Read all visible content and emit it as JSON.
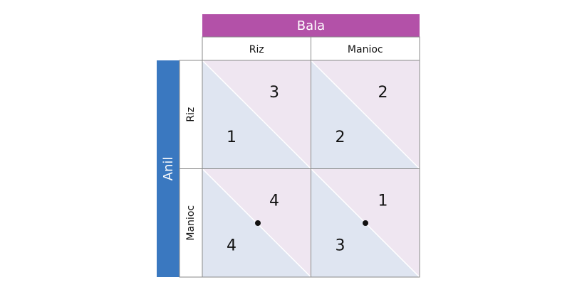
{
  "column_player": "Bala",
  "row_player": "Anil",
  "columns": [
    "Riz",
    "Manioc"
  ],
  "rows": [
    "Riz",
    "Manioc"
  ],
  "cells": [
    [
      {
        "row_payoff": 1,
        "column_payoff": 3
      },
      {
        "row_payoff": 2,
        "column_payoff": 2
      }
    ],
    [
      {
        "row_payoff": 4,
        "column_payoff": 4
      },
      {
        "row_payoff": 3,
        "column_payoff": 1
      }
    ]
  ]
}
